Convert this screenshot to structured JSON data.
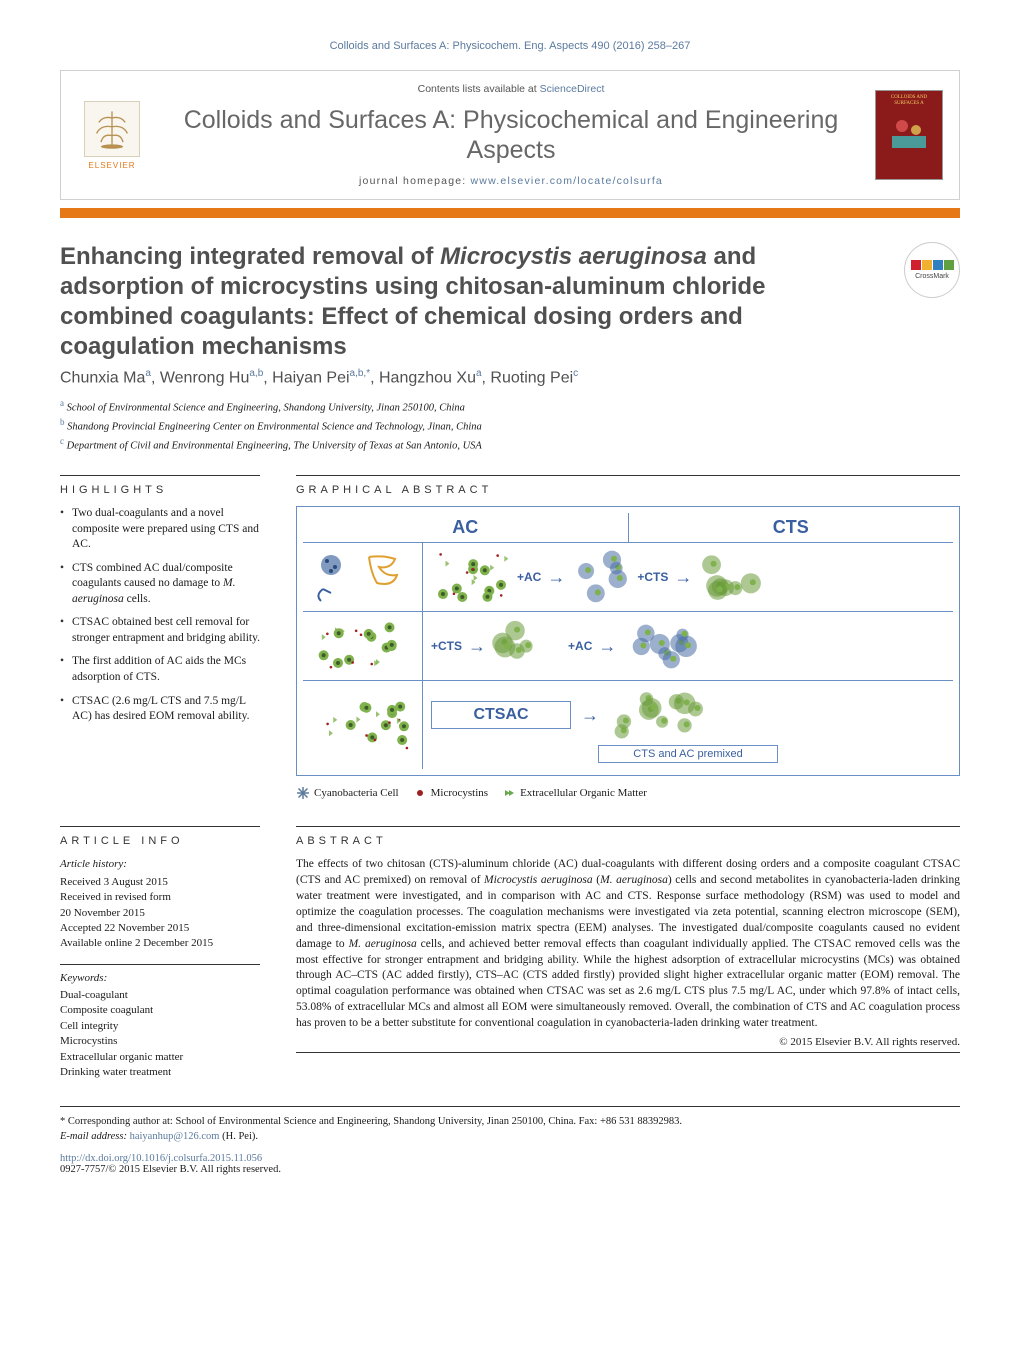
{
  "running_head": "Colloids and Surfaces A: Physicochem. Eng. Aspects 490 (2016) 258–267",
  "header": {
    "contents_prefix": "Contents lists available at ",
    "contents_link": "ScienceDirect",
    "journal_name": "Colloids and Surfaces A: Physicochemical and Engineering Aspects",
    "homepage_prefix": "journal homepage: ",
    "homepage_link": "www.elsevier.com/locate/colsurfa",
    "elsevier_label": "ELSEVIER",
    "crossmark_label": "CrossMark",
    "cover_text": "COLLOIDS AND SURFACES A"
  },
  "title": {
    "pre": "Enhancing integrated removal of ",
    "species": "Microcystis aeruginosa",
    "post": " and adsorption of microcystins using chitosan-aluminum chloride combined coagulants: Effect of chemical dosing orders and coagulation mechanisms"
  },
  "authors": [
    {
      "name": "Chunxia Ma",
      "aff": "a"
    },
    {
      "name": "Wenrong Hu",
      "aff": "a,b"
    },
    {
      "name": "Haiyan Pei",
      "aff": "a,b,*"
    },
    {
      "name": "Hangzhou Xu",
      "aff": "a"
    },
    {
      "name": "Ruoting Pei",
      "aff": "c"
    }
  ],
  "affiliations": [
    {
      "sup": "a",
      "text": "School of Environmental Science and Engineering, Shandong University, Jinan 250100, China"
    },
    {
      "sup": "b",
      "text": "Shandong Provincial Engineering Center on Environmental Science and Technology, Jinan, China"
    },
    {
      "sup": "c",
      "text": "Department of Civil and Environmental Engineering, The University of Texas at San Antonio, USA"
    }
  ],
  "highlights": {
    "heading": "HIGHLIGHTS",
    "items": [
      "Two dual-coagulants and a novel composite were prepared using CTS and AC.",
      "CTS combined AC dual/composite coagulants caused no damage to <em>M. aeruginosa</em> cells.",
      "CTSAC obtained best cell removal for stronger entrapment and bridging ability.",
      "The first addition of AC aids the MCs adsorption of CTS.",
      "CTSAC (2.6 mg/L CTS and 7.5 mg/L AC) has desired EOM removal ability."
    ]
  },
  "graphical_abstract": {
    "heading": "GRAPHICAL ABSTRACT",
    "header_ac": "AC",
    "header_cts": "CTS",
    "row1_step1": "+AC",
    "row1_step2": "+CTS",
    "row2_step1": "+CTS",
    "row2_step2": "+AC",
    "row3_label": "CTSAC",
    "bottom_label": "CTS and AC premixed",
    "legend": [
      {
        "label": "Cyanobacteria Cell",
        "color": "#5b7a9e",
        "shape": "asterisk"
      },
      {
        "label": "Microcystins",
        "color": "#a02020",
        "shape": "dot"
      },
      {
        "label": "Extracellular Organic Matter",
        "color": "#6aa84f",
        "shape": "chevron"
      }
    ],
    "colors": {
      "border": "#6a8fc5",
      "label": "#3a5fa0",
      "cell_green": "#7fb24d",
      "cell_dark": "#3d5a28",
      "dot_red": "#a02020",
      "floc_blue": "#4a6fa5",
      "floc_green": "#6a9a3a"
    }
  },
  "article_info": {
    "heading": "ARTICLE INFO",
    "history_head": "Article history:",
    "dates": [
      "Received 3 August 2015",
      "Received in revised form",
      "20 November 2015",
      "Accepted 22 November 2015",
      "Available online 2 December 2015"
    ],
    "keywords_head": "Keywords:",
    "keywords": [
      "Dual-coagulant",
      "Composite coagulant",
      "Cell integrity",
      "Microcystins",
      "Extracellular organic matter",
      "Drinking water treatment"
    ]
  },
  "abstract": {
    "heading": "ABSTRACT",
    "text": "The effects of two chitosan (CTS)-aluminum chloride (AC) dual-coagulants with different dosing orders and a composite coagulant CTSAC (CTS and AC premixed) on removal of <em>Microcystis aeruginosa</em> (<em>M. aeruginosa</em>) cells and second metabolites in cyanobacteria-laden drinking water treatment were investigated, and in comparison with AC and CTS. Response surface methodology (RSM) was used to model and optimize the coagulation processes. The coagulation mechanisms were investigated via zeta potential, scanning electron microscope (SEM), and three-dimensional excitation-emission matrix spectra (EEM) analyses. The investigated dual/composite coagulants caused no evident damage to <em>M. aeruginosa</em> cells, and achieved better removal effects than coagulant individually applied. The CTSAC removed cells was the most effective for stronger entrapment and bridging ability. While the highest adsorption of extracellular microcystins (MCs) was obtained through AC–CTS (AC added firstly), CTS–AC (CTS added firstly) provided slight higher extracellular organic matter (EOM) removal. The optimal coagulation performance was obtained when CTSAC was set as 2.6 mg/L CTS plus 7.5 mg/L AC, under which 97.8% of intact cells, 53.08% of extracellular MCs and almost all EOM were simultaneously removed. Overall, the combination of CTS and AC coagulation process has proven to be a better substitute for conventional coagulation in cyanobacteria-laden drinking water treatment.",
    "copyright": "© 2015 Elsevier B.V. All rights reserved."
  },
  "footer": {
    "corresponding_label": "* Corresponding author at: School of Environmental Science and Engineering, Shandong University, Jinan 250100, China. Fax: +86 531 88392983.",
    "email_label": "E-mail address: ",
    "email": "haiyanhup@126.com",
    "email_author": " (H. Pei).",
    "doi_link": "http://dx.doi.org/10.1016/j.colsurfa.2015.11.056",
    "issn_line": "0927-7757/© 2015 Elsevier B.V. All rights reserved."
  }
}
